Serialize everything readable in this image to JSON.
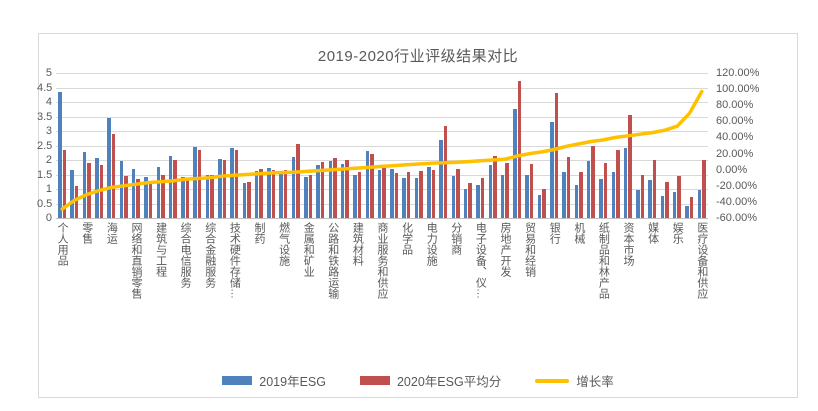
{
  "chart_data": {
    "type": "bar",
    "subtype": "grouped-bars-with-secondary-axis-line",
    "title": "2019-2020行业评级结果对比",
    "num_categories": 53,
    "category_label_interval": 2,
    "category_labels_shown": [
      "个人用品",
      "零售",
      "海运",
      "网络和直销零售",
      "建筑与工程",
      "综合电信服务",
      "综合金融服务",
      "技术硬件存储…",
      "制药",
      "燃气设施",
      "金属和矿业",
      "公路和铁路运输",
      "建筑材料",
      "商业服务和供应",
      "化学品",
      "电力设施",
      "分销商",
      "电子设备、仪…",
      "房地产开发",
      "贸易和经销",
      "银行",
      "机械",
      "纸制品和林产品",
      "资本市场",
      "媒体",
      "娱乐",
      "医疗设备和供应"
    ],
    "series": [
      {
        "name": "2019年ESG",
        "type": "bar",
        "color": "#4F81BD",
        "axis": "primary",
        "values": [
          4.33,
          1.65,
          2.28,
          2.06,
          3.45,
          1.95,
          1.7,
          1.4,
          1.75,
          2.15,
          1.4,
          2.45,
          1.5,
          2.05,
          2.4,
          1.2,
          1.62,
          1.72,
          1.62,
          2.1,
          1.4,
          1.82,
          1.95,
          1.85,
          1.5,
          2.32,
          1.65,
          1.68,
          1.37,
          1.37,
          1.77,
          2.7,
          1.45,
          1.0,
          1.15,
          1.82,
          1.5,
          3.75,
          1.5,
          0.78,
          3.3,
          1.6,
          1.15,
          1.95,
          1.33,
          1.6,
          2.4,
          0.95,
          1.3,
          0.75,
          0.9,
          0.4,
          0.95
        ]
      },
      {
        "name": "2020年ESG平均分",
        "type": "bar",
        "color": "#C0504D",
        "axis": "primary",
        "values": [
          2.35,
          1.1,
          1.9,
          1.84,
          2.9,
          1.45,
          1.35,
          1.2,
          1.5,
          2.0,
          1.3,
          2.35,
          1.5,
          2.0,
          2.35,
          1.25,
          1.68,
          1.65,
          1.64,
          2.55,
          1.48,
          1.92,
          2.08,
          2.0,
          1.6,
          2.2,
          1.72,
          1.55,
          1.6,
          1.62,
          1.64,
          3.18,
          1.7,
          1.2,
          1.38,
          2.15,
          1.9,
          4.72,
          1.85,
          1.0,
          4.3,
          2.1,
          1.6,
          2.5,
          1.9,
          2.35,
          3.55,
          1.5,
          2.0,
          1.25,
          1.45,
          0.72,
          2.0
        ]
      },
      {
        "name": "增长率",
        "type": "line",
        "color": "#FFC000",
        "axis": "secondary",
        "values_pct": [
          -49,
          -38,
          -31,
          -26,
          -22,
          -20,
          -18,
          -16,
          -15,
          -14,
          -12,
          -11,
          -10,
          -8,
          -7,
          -6,
          -5,
          -4,
          -3.5,
          -3,
          -2,
          -1,
          0,
          1,
          2,
          3,
          4,
          5,
          6,
          7,
          8,
          8.5,
          9,
          10,
          11,
          12,
          13,
          17,
          20,
          22,
          25,
          29,
          32,
          35,
          37,
          40,
          42,
          44,
          46,
          49,
          54,
          70,
          97
        ]
      }
    ],
    "left_axis": {
      "min": 0,
      "max": 5,
      "step": 0.5,
      "ticks": [
        "5",
        "4.5",
        "4",
        "3.5",
        "3",
        "2.5",
        "2",
        "1.5",
        "1",
        "0.5",
        "0"
      ]
    },
    "right_axis": {
      "min": -60,
      "max": 120,
      "step": 20,
      "ticks": [
        "120.00%",
        "100.00%",
        "80.00%",
        "60.00%",
        "40.00%",
        "20.00%",
        "0.00%",
        "-20.00%",
        "-40.00%",
        "-60.00%"
      ]
    },
    "grid": true,
    "legend_position": "bottom",
    "colors": {
      "grid": "#D9D9D9",
      "axis_text": "#595959",
      "axis_line": "#BFBFBF",
      "border": "#D9D9D9",
      "background": "#FFFFFF"
    }
  },
  "legend": {
    "items": [
      {
        "label": "2019年ESG",
        "swatch": "bar-swatch-blue"
      },
      {
        "label": "2020年ESG平均分",
        "swatch": "bar-swatch-red"
      },
      {
        "label": "增长率",
        "swatch": "line-swatch-yellow"
      }
    ]
  }
}
